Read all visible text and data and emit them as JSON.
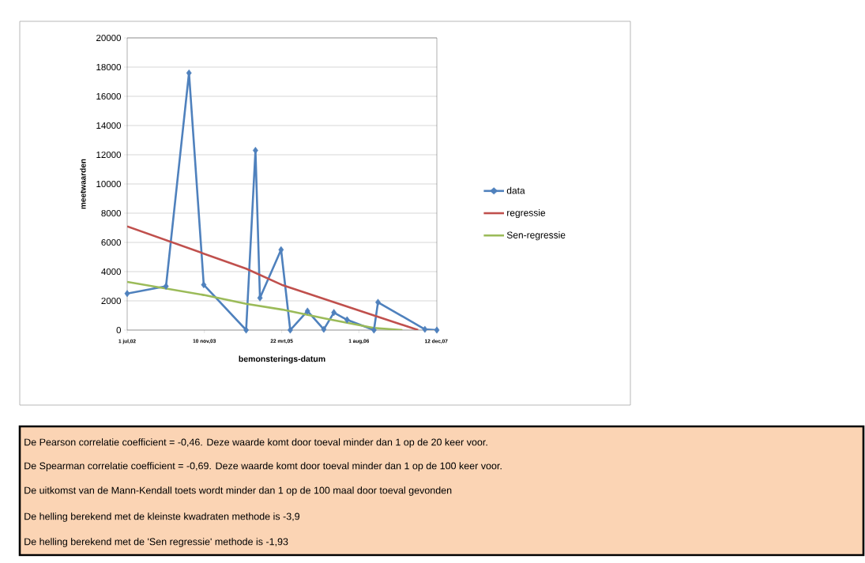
{
  "chart_data": {
    "type": "line",
    "xlabel": "bemonsterings-datum",
    "ylabel": "meetwaarden",
    "xlim": [
      "2002-07-01",
      "2007-12-16"
    ],
    "xticks": [
      {
        "value": "2002-07-01",
        "label": "1 jul,02"
      },
      {
        "value": "2003-11-10",
        "label": "10 nov,03"
      },
      {
        "value": "2005-03-22",
        "label": "22 mrt,05"
      },
      {
        "value": "2006-08-01",
        "label": "1 aug,06"
      },
      {
        "value": "2007-12-12",
        "label": "12 dec,07"
      }
    ],
    "ylim": [
      0,
      20000
    ],
    "yticks": [
      0,
      2000,
      4000,
      6000,
      8000,
      10000,
      12000,
      14000,
      16000,
      18000,
      20000
    ],
    "grid": "y",
    "legend": "right",
    "line_style": "solid",
    "series": [
      {
        "name": "data",
        "color": "#4f81bd",
        "marker": "diamond",
        "x": [
          "2002-07-01",
          "2003-03-08",
          "2003-08-03",
          "2003-11-06",
          "2004-08-05",
          "2004-10-04",
          "2004-11-02",
          "2005-03-18",
          "2005-05-16",
          "2005-09-04",
          "2005-12-18",
          "2006-02-21",
          "2006-05-17",
          "2006-11-06",
          "2006-12-02",
          "2007-09-30",
          "2007-12-16"
        ],
        "values": [
          2500,
          3000,
          17600,
          3100,
          0,
          12300,
          2200,
          5500,
          0,
          1300,
          50,
          1200,
          700,
          0,
          1900,
          50,
          0
        ]
      },
      {
        "name": "regressie",
        "color": "#c0504d",
        "marker": "none",
        "x": [
          "2002-07-01",
          "2004-08-05",
          "2005-03-22",
          "2006-11-06",
          "2007-08-18"
        ],
        "values": [
          7100,
          4200,
          3100,
          1000,
          0
        ]
      },
      {
        "name": "Sen-regressie",
        "color": "#9bbb59",
        "marker": "none",
        "x": [
          "2002-07-01",
          "2003-11-06",
          "2004-08-05",
          "2005-03-26",
          "2005-12-23",
          "2006-11-03",
          "2007-05-08"
        ],
        "values": [
          3300,
          2400,
          1800,
          1400,
          800,
          150,
          0
        ]
      }
    ],
    "annotations": [
      "De Pearson correlatie coefficient = -0,46. Deze waarde komt door toeval minder dan 1 op de 20 keer voor.",
      "De Spearman correlatie coefficient = -0,69. Deze waarde komt door toeval minder dan 1 op de 100 keer voor.",
      "De uitkomst van de Mann-Kendall toets wordt minder dan 1 op de 100 maal door toeval gevonden",
      "De helling berekend met de kleinste kwadraten methode is -3,9",
      "De helling berekend met de 'Sen regressie' methode is -1,93"
    ]
  }
}
